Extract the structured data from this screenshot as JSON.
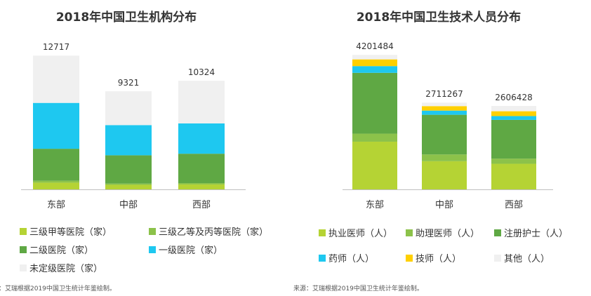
{
  "chart_data": [
    {
      "type": "bar",
      "stacked": true,
      "title": "2018年中国卫生机构分布",
      "categories": [
        "东部",
        "中部",
        "西部"
      ],
      "totals": [
        "12717",
        "9321",
        "10324"
      ],
      "ylim": [
        0,
        14000
      ],
      "series": [
        {
          "name": "三级甲等医院（家）",
          "color": "#b5d334",
          "values": [
            640,
            430,
            470
          ]
        },
        {
          "name": "三级乙等及丙等医院（家）",
          "color": "#8cc24a",
          "values": [
            180,
            120,
            130
          ]
        },
        {
          "name": "二级医院（家）",
          "color": "#5fa844",
          "values": [
            3040,
            2690,
            2790
          ]
        },
        {
          "name": "一级医院（家）",
          "color": "#1ec8f0",
          "values": [
            4360,
            2870,
            2880
          ]
        },
        {
          "name": "未定级医院（家）",
          "color": "#f0f0f0",
          "values": [
            4497,
            3211,
            4054
          ]
        }
      ],
      "grid": false,
      "legend": "bottom"
    },
    {
      "type": "bar",
      "stacked": true,
      "title": "2018年中国卫生技术人员分布",
      "categories": [
        "东部",
        "中部",
        "西部"
      ],
      "totals": [
        "4201484",
        "2711267",
        "2606428"
      ],
      "ylim": [
        0,
        4600000
      ],
      "series": [
        {
          "name": "执业医师（人）",
          "color": "#b5d334",
          "values": [
            1490000,
            880000,
            800000
          ]
        },
        {
          "name": "助理医师（人）",
          "color": "#8cc24a",
          "values": [
            250000,
            210000,
            160000
          ]
        },
        {
          "name": "注册护士（人）",
          "color": "#5fa844",
          "values": [
            1900000,
            1240000,
            1210000
          ]
        },
        {
          "name": "药师（人）",
          "color": "#1ec8f0",
          "values": [
            210000,
            130000,
            120000
          ]
        },
        {
          "name": "技师（人）",
          "color": "#ffd000",
          "values": [
            210000,
            140000,
            150000
          ]
        },
        {
          "name": "其他（人）",
          "color": "#f0f0f0",
          "values": [
            141484,
            111267,
            166428
          ]
        }
      ],
      "grid": false,
      "legend": "bottom"
    }
  ],
  "sources": {
    "left": "：艾瑞根据2019中国卫生统计年鉴绘制。",
    "right": "来源：艾瑞根据2019中国卫生统计年鉴绘制。"
  }
}
